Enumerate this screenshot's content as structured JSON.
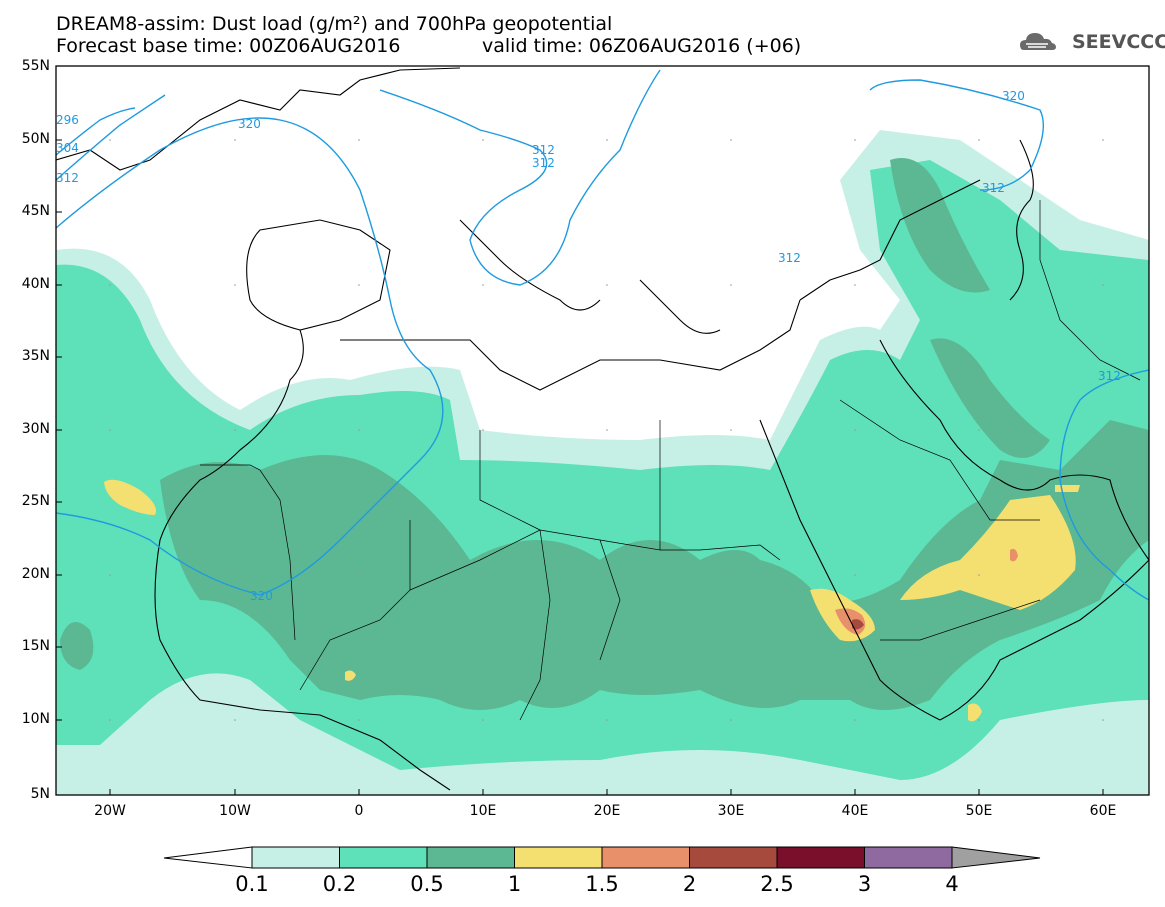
{
  "header": {
    "line1": "DREAM8-assim: Dust load (g/m²) and 700hPa geopotential",
    "line2": "Forecast base time: 00Z06AUG2016",
    "valid": "valid time: 06Z06AUG2016 (+06)"
  },
  "logo": {
    "text": "SEEVCCC",
    "icon": "cloud-logo-icon"
  },
  "axes": {
    "lat_labels": [
      "55N",
      "50N",
      "45N",
      "40N",
      "35N",
      "30N",
      "25N",
      "20N",
      "15N",
      "10N",
      "5N"
    ],
    "lon_labels": [
      "20W",
      "10W",
      "0",
      "10E",
      "20E",
      "30E",
      "40E",
      "50E",
      "60E"
    ]
  },
  "contours": {
    "labels": [
      "320",
      "312",
      "312",
      "312",
      "320",
      "312",
      "320",
      "312",
      "296",
      "304",
      "312"
    ]
  },
  "colorbar": {
    "labels": [
      "0.1",
      "0.2",
      "0.5",
      "1",
      "1.5",
      "2",
      "2.5",
      "3",
      "4"
    ],
    "colors": [
      "#c6f0e6",
      "#5ee0b8",
      "#5cb893",
      "#f3e070",
      "#e8906a",
      "#a54a3d",
      "#7a0f2c",
      "#8e6aa0",
      "#a0a0a0"
    ]
  },
  "colors": {
    "coast": "#000000",
    "contour": "#1f9ae0"
  }
}
